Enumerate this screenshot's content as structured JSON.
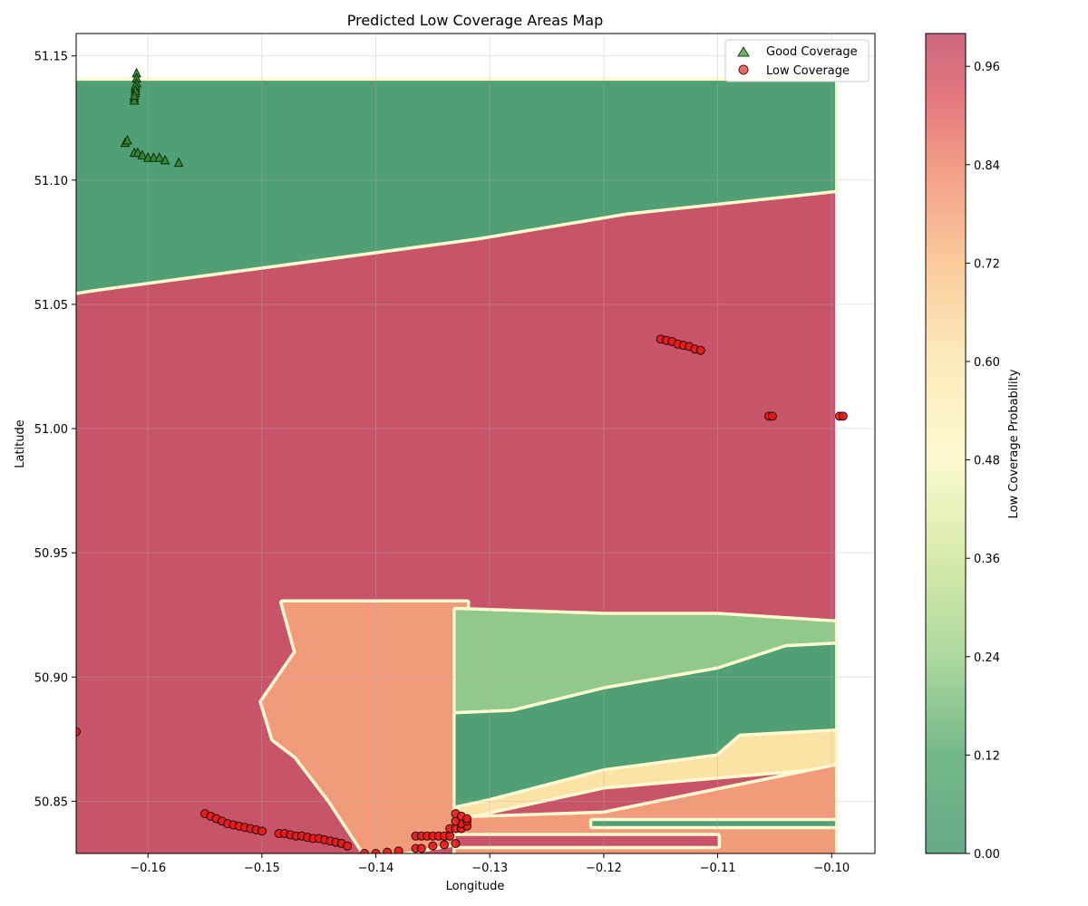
{
  "chart_data": {
    "type": "scatter",
    "title": "Predicted Low Coverage Areas Map",
    "xlabel": "Longitude",
    "ylabel": "Latitude",
    "xlim": [
      -0.1663,
      -0.0962
    ],
    "ylim": [
      50.829,
      51.159
    ],
    "x_ticks": [
      -0.16,
      -0.15,
      -0.14,
      -0.13,
      -0.12,
      -0.11,
      -0.1
    ],
    "x_tick_labels": [
      "−0.16",
      "−0.15",
      "−0.14",
      "−0.13",
      "−0.12",
      "−0.11",
      "−0.10"
    ],
    "y_ticks": [
      50.85,
      50.9,
      50.95,
      51.0,
      51.05,
      51.1,
      51.15
    ],
    "y_tick_labels": [
      "50.85",
      "50.90",
      "50.95",
      "51.00",
      "51.05",
      "51.10",
      "51.15"
    ],
    "grid": true,
    "legend_position": "top-right",
    "colors": {
      "high": "#c24c67",
      "green": "#4a9a73",
      "light_green": "#9fd28e",
      "salmon": "#f29b7a",
      "pale": "#fbe3a6",
      "good_marker": "#4aa04a",
      "low_marker": "#e85050"
    },
    "contour_regions": [
      {
        "name": "north-green",
        "value": 0.02,
        "polygon": [
          [
            -0.1663,
            51.14
          ],
          [
            -0.0997,
            51.14
          ],
          [
            -0.0997,
            51.096
          ],
          [
            -0.118,
            51.087
          ],
          [
            -0.131,
            51.077
          ],
          [
            -0.152,
            51.064
          ],
          [
            -0.165,
            51.056
          ],
          [
            -0.1663,
            51.055
          ]
        ]
      },
      {
        "name": "south-salmon",
        "value": 0.8,
        "polygon": [
          [
            -0.1482,
            50.93
          ],
          [
            -0.132,
            50.93
          ],
          [
            -0.133,
            50.84
          ],
          [
            -0.132,
            50.834
          ],
          [
            -0.138,
            50.829
          ],
          [
            -0.141,
            50.829
          ],
          [
            -0.144,
            50.85
          ],
          [
            -0.147,
            50.868
          ],
          [
            -0.149,
            50.875
          ],
          [
            -0.15,
            50.89
          ],
          [
            -0.147,
            50.91
          ]
        ]
      },
      {
        "name": "east-light-green",
        "value": 0.2,
        "polygon": [
          [
            -0.133,
            50.927
          ],
          [
            -0.12,
            50.925
          ],
          [
            -0.11,
            50.925
          ],
          [
            -0.0997,
            50.922
          ],
          [
            -0.0997,
            50.913
          ],
          [
            -0.104,
            50.912
          ],
          [
            -0.11,
            50.903
          ],
          [
            -0.12,
            50.895
          ],
          [
            -0.128,
            50.886
          ],
          [
            -0.133,
            50.885
          ]
        ]
      },
      {
        "name": "east-dark-green",
        "value": 0.02,
        "polygon": [
          [
            -0.133,
            50.885
          ],
          [
            -0.128,
            50.886
          ],
          [
            -0.12,
            50.895
          ],
          [
            -0.11,
            50.903
          ],
          [
            -0.104,
            50.912
          ],
          [
            -0.0997,
            50.913
          ],
          [
            -0.0997,
            50.878
          ],
          [
            -0.108,
            50.876
          ],
          [
            -0.11,
            50.868
          ],
          [
            -0.12,
            50.862
          ],
          [
            -0.13,
            50.85
          ],
          [
            -0.133,
            50.847
          ]
        ]
      },
      {
        "name": "east-pale",
        "value": 0.65,
        "polygon": [
          [
            -0.133,
            50.847
          ],
          [
            -0.13,
            50.85
          ],
          [
            -0.12,
            50.862
          ],
          [
            -0.11,
            50.868
          ],
          [
            -0.108,
            50.876
          ],
          [
            -0.0997,
            50.878
          ],
          [
            -0.0997,
            50.864
          ],
          [
            -0.11,
            50.86
          ],
          [
            -0.12,
            50.856
          ],
          [
            -0.133,
            50.843
          ]
        ]
      },
      {
        "name": "east-salmon-strip",
        "value": 0.8,
        "polygon": [
          [
            -0.133,
            50.843
          ],
          [
            -0.12,
            50.845
          ],
          [
            -0.0997,
            50.864
          ],
          [
            -0.0997,
            50.829
          ],
          [
            -0.133,
            50.829
          ]
        ]
      },
      {
        "name": "east-red-band",
        "value": 0.98,
        "polygon": [
          [
            -0.133,
            50.836
          ],
          [
            -0.11,
            50.836
          ],
          [
            -0.11,
            50.832
          ],
          [
            -0.133,
            50.832
          ]
        ]
      },
      {
        "name": "east-green-line",
        "value": 0.02,
        "polygon": [
          [
            -0.121,
            50.842
          ],
          [
            -0.0997,
            50.842
          ],
          [
            -0.0997,
            50.84
          ],
          [
            -0.121,
            50.84
          ]
        ]
      }
    ],
    "colorbar": {
      "label": "Low Coverage Probability",
      "range": [
        0.0,
        1.0
      ],
      "ticks": [
        0.0,
        0.12,
        0.24,
        0.36,
        0.48,
        0.6,
        0.72,
        0.84,
        0.96
      ],
      "tick_labels": [
        "0.00",
        "0.12",
        "0.24",
        "0.36",
        "0.48",
        "0.60",
        "0.72",
        "0.84",
        "0.96"
      ]
    },
    "series": [
      {
        "name": "Good Coverage",
        "marker": "triangle",
        "points": [
          [
            -0.161,
            51.143
          ],
          [
            -0.161,
            51.141
          ],
          [
            -0.161,
            51.139
          ],
          [
            -0.1611,
            51.137
          ],
          [
            -0.1611,
            51.135
          ],
          [
            -0.1612,
            51.133
          ],
          [
            -0.1612,
            51.132
          ],
          [
            -0.1611,
            51.138
          ],
          [
            -0.1611,
            51.136
          ],
          [
            -0.1612,
            51.134
          ],
          [
            -0.162,
            51.115
          ],
          [
            -0.1618,
            51.116
          ],
          [
            -0.1612,
            51.111
          ],
          [
            -0.1609,
            51.111
          ],
          [
            -0.1605,
            51.11
          ],
          [
            -0.16,
            51.109
          ],
          [
            -0.1595,
            51.109
          ],
          [
            -0.159,
            51.109
          ],
          [
            -0.1585,
            51.108
          ],
          [
            -0.1573,
            51.107
          ]
        ]
      },
      {
        "name": "Low Coverage",
        "marker": "circle",
        "points": [
          [
            -0.1663,
            50.878
          ],
          [
            -0.115,
            51.036
          ],
          [
            -0.1145,
            51.0355
          ],
          [
            -0.114,
            51.035
          ],
          [
            -0.1135,
            51.034
          ],
          [
            -0.113,
            51.0335
          ],
          [
            -0.1125,
            51.033
          ],
          [
            -0.112,
            51.032
          ],
          [
            -0.1115,
            51.0315
          ],
          [
            -0.1055,
            51.005
          ],
          [
            -0.1052,
            51.005
          ],
          [
            -0.0993,
            51.005
          ],
          [
            -0.099,
            51.005
          ],
          [
            -0.155,
            50.845
          ],
          [
            -0.1545,
            50.844
          ],
          [
            -0.154,
            50.843
          ],
          [
            -0.1535,
            50.842
          ],
          [
            -0.153,
            50.841
          ],
          [
            -0.1525,
            50.8405
          ],
          [
            -0.152,
            50.84
          ],
          [
            -0.1515,
            50.8395
          ],
          [
            -0.151,
            50.839
          ],
          [
            -0.1505,
            50.8385
          ],
          [
            -0.15,
            50.838
          ],
          [
            -0.1485,
            50.837
          ],
          [
            -0.148,
            50.837
          ],
          [
            -0.1475,
            50.8365
          ],
          [
            -0.147,
            50.836
          ],
          [
            -0.1465,
            50.836
          ],
          [
            -0.146,
            50.8355
          ],
          [
            -0.1455,
            50.835
          ],
          [
            -0.145,
            50.835
          ],
          [
            -0.1445,
            50.8345
          ],
          [
            -0.144,
            50.834
          ],
          [
            -0.1435,
            50.8335
          ],
          [
            -0.143,
            50.833
          ],
          [
            -0.1425,
            50.832
          ],
          [
            -0.141,
            50.829
          ],
          [
            -0.14,
            50.829
          ],
          [
            -0.139,
            50.8295
          ],
          [
            -0.138,
            50.83
          ],
          [
            -0.1365,
            50.831
          ],
          [
            -0.136,
            50.831
          ],
          [
            -0.135,
            50.832
          ],
          [
            -0.134,
            50.8325
          ],
          [
            -0.133,
            50.833
          ],
          [
            -0.1365,
            50.836
          ],
          [
            -0.136,
            50.836
          ],
          [
            -0.1355,
            50.836
          ],
          [
            -0.135,
            50.836
          ],
          [
            -0.1345,
            50.836
          ],
          [
            -0.134,
            50.836
          ],
          [
            -0.1335,
            50.836
          ],
          [
            -0.1335,
            50.839
          ],
          [
            -0.133,
            50.839
          ],
          [
            -0.1325,
            50.839
          ],
          [
            -0.132,
            50.84
          ],
          [
            -0.1325,
            50.841
          ],
          [
            -0.133,
            50.842
          ],
          [
            -0.132,
            50.842
          ],
          [
            -0.133,
            50.845
          ],
          [
            -0.1325,
            50.844
          ],
          [
            -0.132,
            50.843
          ]
        ]
      }
    ]
  }
}
